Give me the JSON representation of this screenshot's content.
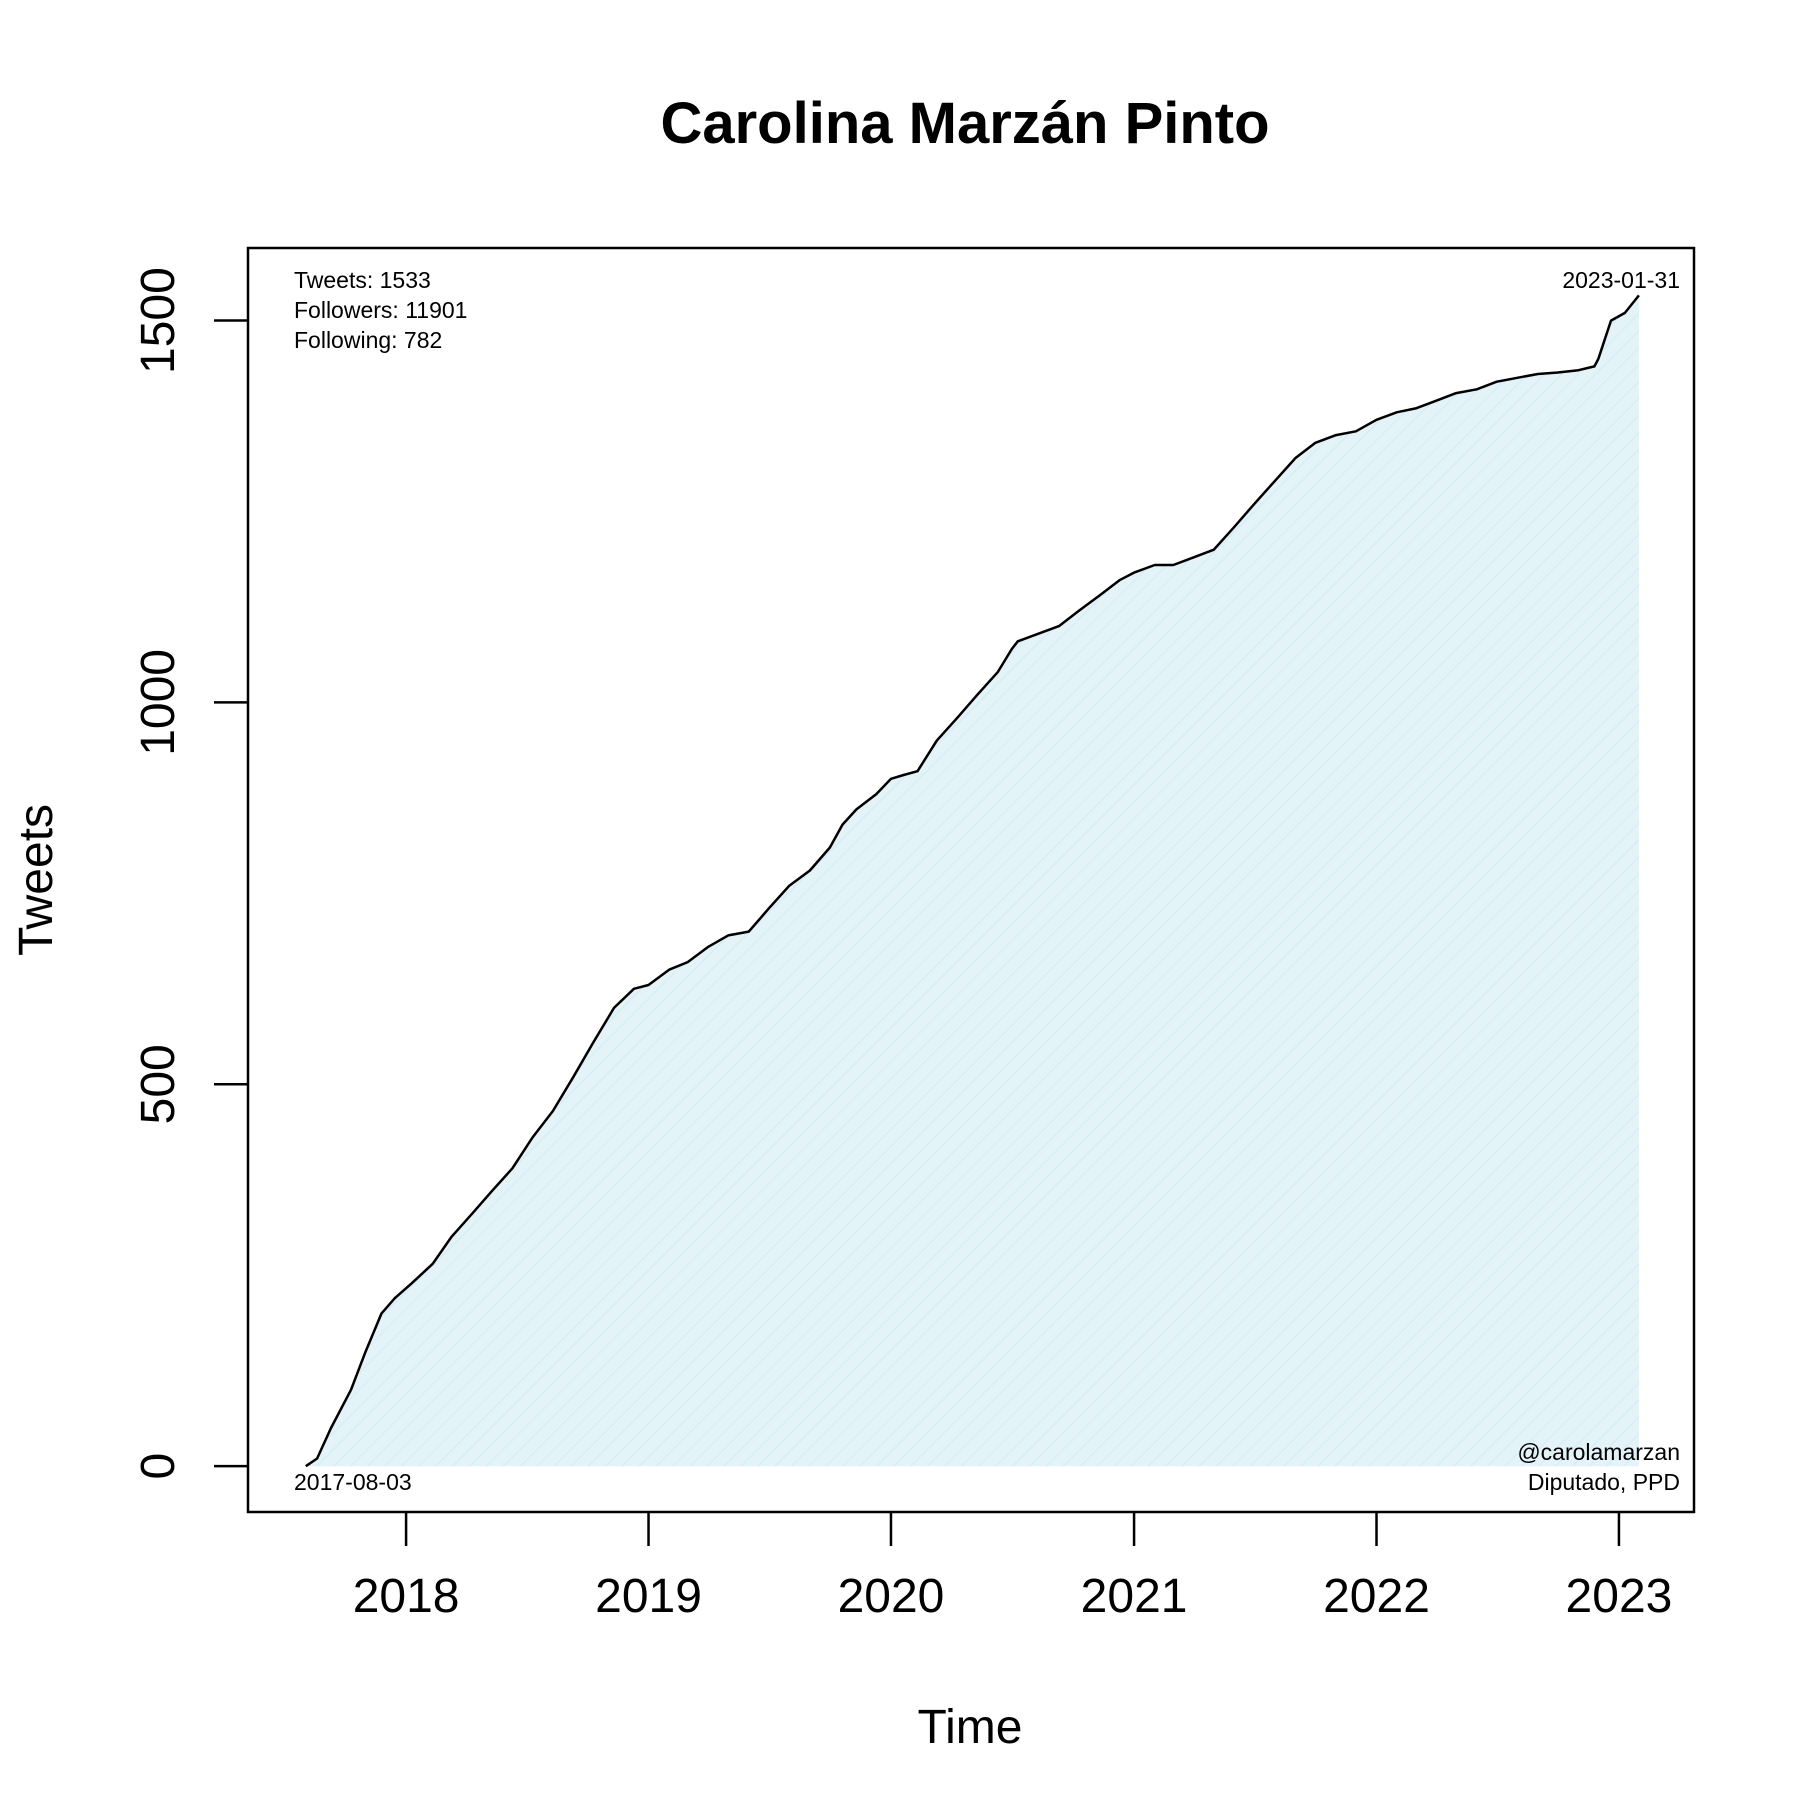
{
  "chart_data": {
    "type": "area",
    "title": "Carolina Marzán Pinto",
    "xlabel": "Time",
    "ylabel": "Tweets",
    "x_ticks": [
      "2018",
      "2019",
      "2020",
      "2021",
      "2022",
      "2023"
    ],
    "y_ticks": [
      "0",
      "500",
      "1000",
      "1500"
    ],
    "xlim": [
      "2017-05-08",
      "2023-04-24"
    ],
    "ylim": [
      -60,
      1595
    ],
    "grid": false,
    "stats": {
      "tweets": "Tweets: 1533",
      "followers": "Followers: 11901",
      "following": "Following: 782"
    },
    "start_date": "2017-08-03",
    "end_date": "2023-01-31",
    "handle": "@carolamarzan",
    "role": "Diputado, PPD",
    "fill_color": "#e4f3f7",
    "line_color": "#000000",
    "series": [
      {
        "x": [
          "2017-08-03",
          "2017-08-20",
          "2017-09-10",
          "2017-10-10",
          "2017-11-01",
          "2017-11-25",
          "2017-12-15",
          "2018-01-10",
          "2018-02-10",
          "2018-03-10",
          "2018-04-10",
          "2018-05-10",
          "2018-06-10",
          "2018-07-10",
          "2018-08-10",
          "2018-09-10",
          "2018-10-10",
          "2018-11-10",
          "2018-12-10",
          "2019-01-01",
          "2019-02-01",
          "2019-03-01",
          "2019-04-01",
          "2019-05-01",
          "2019-06-01",
          "2019-07-01",
          "2019-08-01",
          "2019-09-01",
          "2019-10-01",
          "2019-10-20",
          "2019-11-10",
          "2019-12-10",
          "2020-01-01",
          "2020-01-20",
          "2020-02-10",
          "2020-03-10",
          "2020-04-10",
          "2020-05-10",
          "2020-06-10",
          "2020-07-01",
          "2020-07-10",
          "2020-08-10",
          "2020-09-10",
          "2020-10-10",
          "2020-11-10",
          "2020-12-10",
          "2021-01-01",
          "2021-02-01",
          "2021-03-01",
          "2021-04-01",
          "2021-05-01",
          "2021-06-01",
          "2021-07-01",
          "2021-08-01",
          "2021-09-01",
          "2021-10-01",
          "2021-11-01",
          "2021-12-01",
          "2022-01-01",
          "2022-02-01",
          "2022-03-01",
          "2022-04-01",
          "2022-05-01",
          "2022-06-01",
          "2022-07-01",
          "2022-08-01",
          "2022-09-01",
          "2022-10-01",
          "2022-11-01",
          "2022-11-25",
          "2022-12-01",
          "2022-12-20",
          "2023-01-10",
          "2023-01-31"
        ],
        "y": [
          0,
          10,
          50,
          100,
          150,
          200,
          220,
          240,
          265,
          300,
          330,
          360,
          390,
          430,
          465,
          510,
          555,
          600,
          625,
          630,
          650,
          660,
          680,
          695,
          700,
          730,
          760,
          780,
          810,
          840,
          860,
          880,
          900,
          905,
          910,
          950,
          980,
          1010,
          1040,
          1070,
          1080,
          1090,
          1100,
          1120,
          1140,
          1160,
          1170,
          1180,
          1180,
          1190,
          1200,
          1230,
          1260,
          1290,
          1320,
          1340,
          1350,
          1355,
          1370,
          1380,
          1385,
          1395,
          1405,
          1410,
          1420,
          1425,
          1430,
          1432,
          1435,
          1440,
          1450,
          1500,
          1510,
          1533
        ]
      }
    ]
  }
}
